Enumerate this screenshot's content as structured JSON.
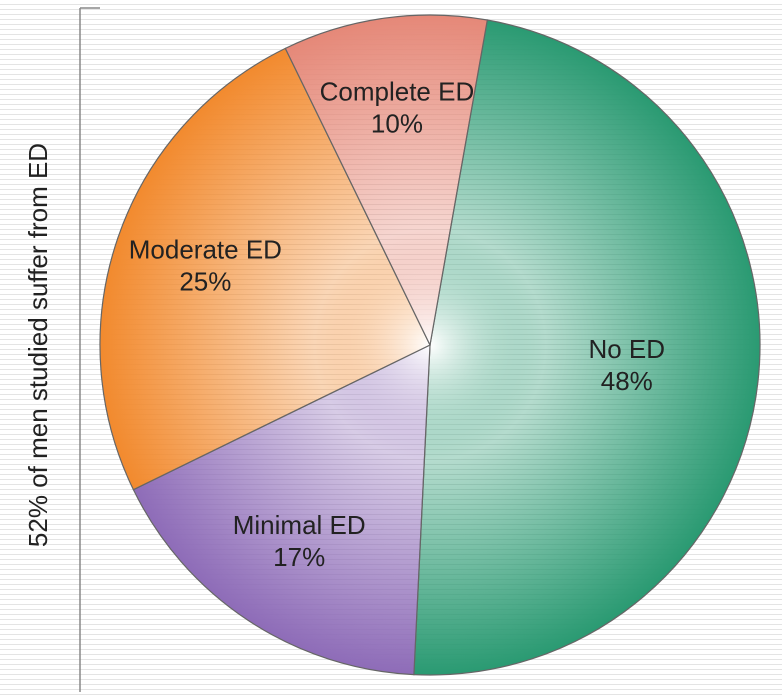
{
  "chart_data": {
    "type": "pie",
    "y_label": "52% of men studied suffer from ED",
    "categories": [
      "No ED",
      "Minimal ED",
      "Moderate ED",
      "Complete ED"
    ],
    "values": [
      48,
      17,
      25,
      10
    ],
    "value_labels": [
      "48%",
      "17%",
      "25%",
      "10%"
    ],
    "colors": [
      "#2a9a72",
      "#8e6cb8",
      "#f28a2e",
      "#e58878"
    ]
  }
}
